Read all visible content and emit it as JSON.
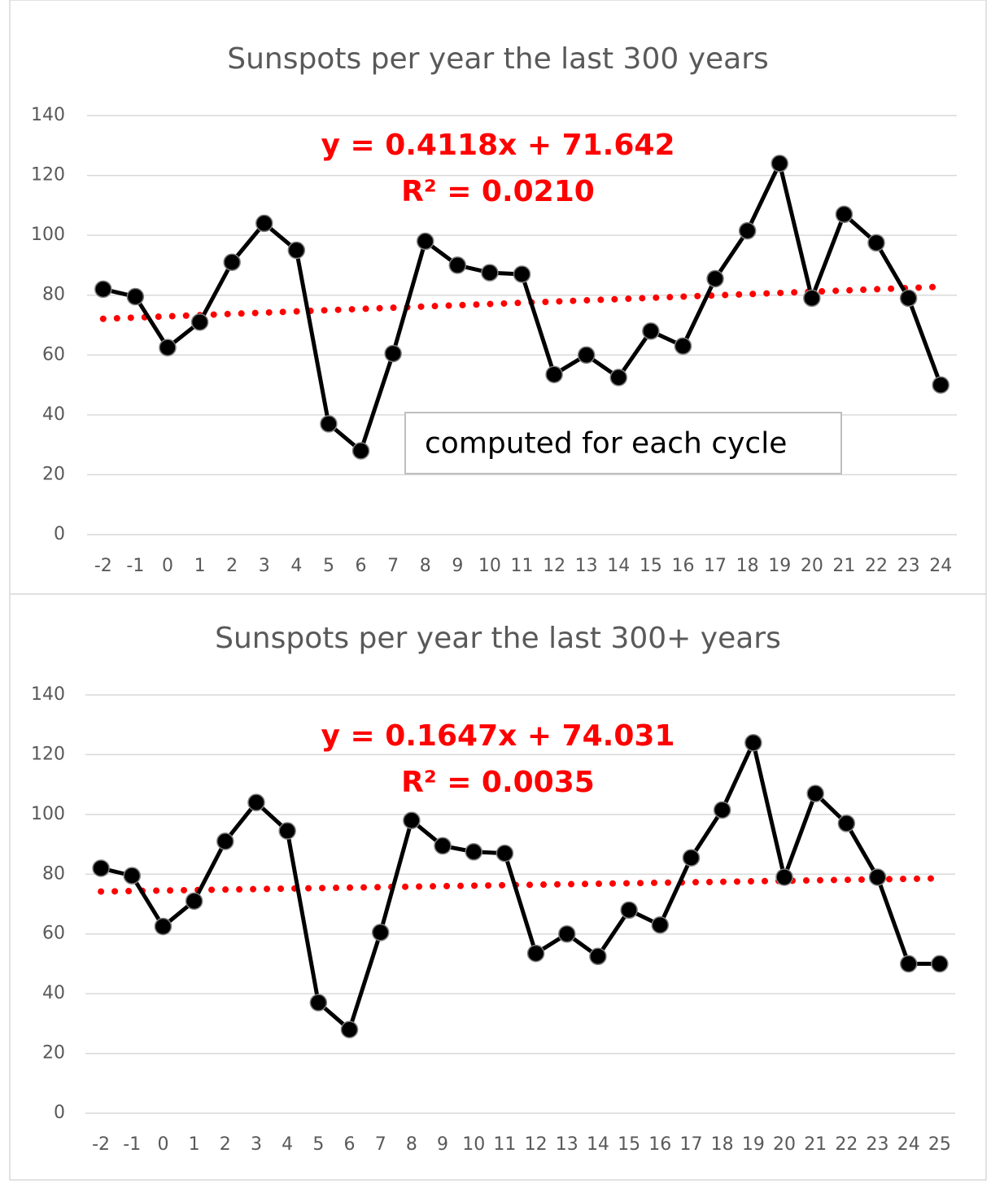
{
  "chart_data": [
    {
      "type": "line",
      "title": "Sunspots per year the last 300 years",
      "categories": [
        "-2",
        "-1",
        "0",
        "1",
        "2",
        "3",
        "4",
        "5",
        "6",
        "7",
        "8",
        "9",
        "10",
        "11",
        "12",
        "13",
        "14",
        "15",
        "16",
        "17",
        "18",
        "19",
        "20",
        "21",
        "22",
        "23",
        "24"
      ],
      "series": [
        {
          "color": "#000000",
          "values": [
            82,
            79.5,
            62.5,
            71,
            91,
            104,
            95,
            37,
            28,
            60.5,
            98,
            90,
            87.5,
            87,
            53.5,
            60,
            52.5,
            68,
            63,
            85.5,
            101.5,
            124,
            79,
            107,
            97.5,
            79,
            50
          ]
        }
      ],
      "trend_values": [
        72.1,
        82.8
      ],
      "trend_color": "#ff0000",
      "ylim": [
        0,
        140
      ],
      "yticks": [
        0,
        20,
        40,
        60,
        80,
        100,
        120,
        140
      ],
      "grid": true,
      "annotations": [
        "y = 0.4118x + 71.642",
        "R² = 0.0210"
      ],
      "text_box": "computed for each cycle"
    },
    {
      "type": "line",
      "title": "Sunspots per year the last 300+ years",
      "categories": [
        "-2",
        "-1",
        "0",
        "1",
        "2",
        "3",
        "4",
        "5",
        "6",
        "7",
        "8",
        "9",
        "10",
        "11",
        "12",
        "13",
        "14",
        "15",
        "16",
        "17",
        "18",
        "19",
        "20",
        "21",
        "22",
        "23",
        "24",
        "25"
      ],
      "series": [
        {
          "color": "#000000",
          "values": [
            82,
            79.5,
            62.5,
            71,
            91,
            104,
            94.5,
            37,
            28,
            60.5,
            98,
            89.5,
            87.5,
            87,
            53.5,
            60,
            52.5,
            68,
            63,
            85.5,
            101.5,
            124,
            79,
            107,
            97,
            79,
            50,
            50
          ]
        }
      ],
      "trend_values": [
        74.2,
        78.6
      ],
      "trend_color": "#ff0000",
      "ylim": [
        0,
        140
      ],
      "yticks": [
        0,
        20,
        40,
        60,
        80,
        100,
        120,
        140
      ],
      "grid": true,
      "annotations": [
        "y = 0.1647x + 74.031",
        "R² = 0.0035"
      ]
    }
  ]
}
